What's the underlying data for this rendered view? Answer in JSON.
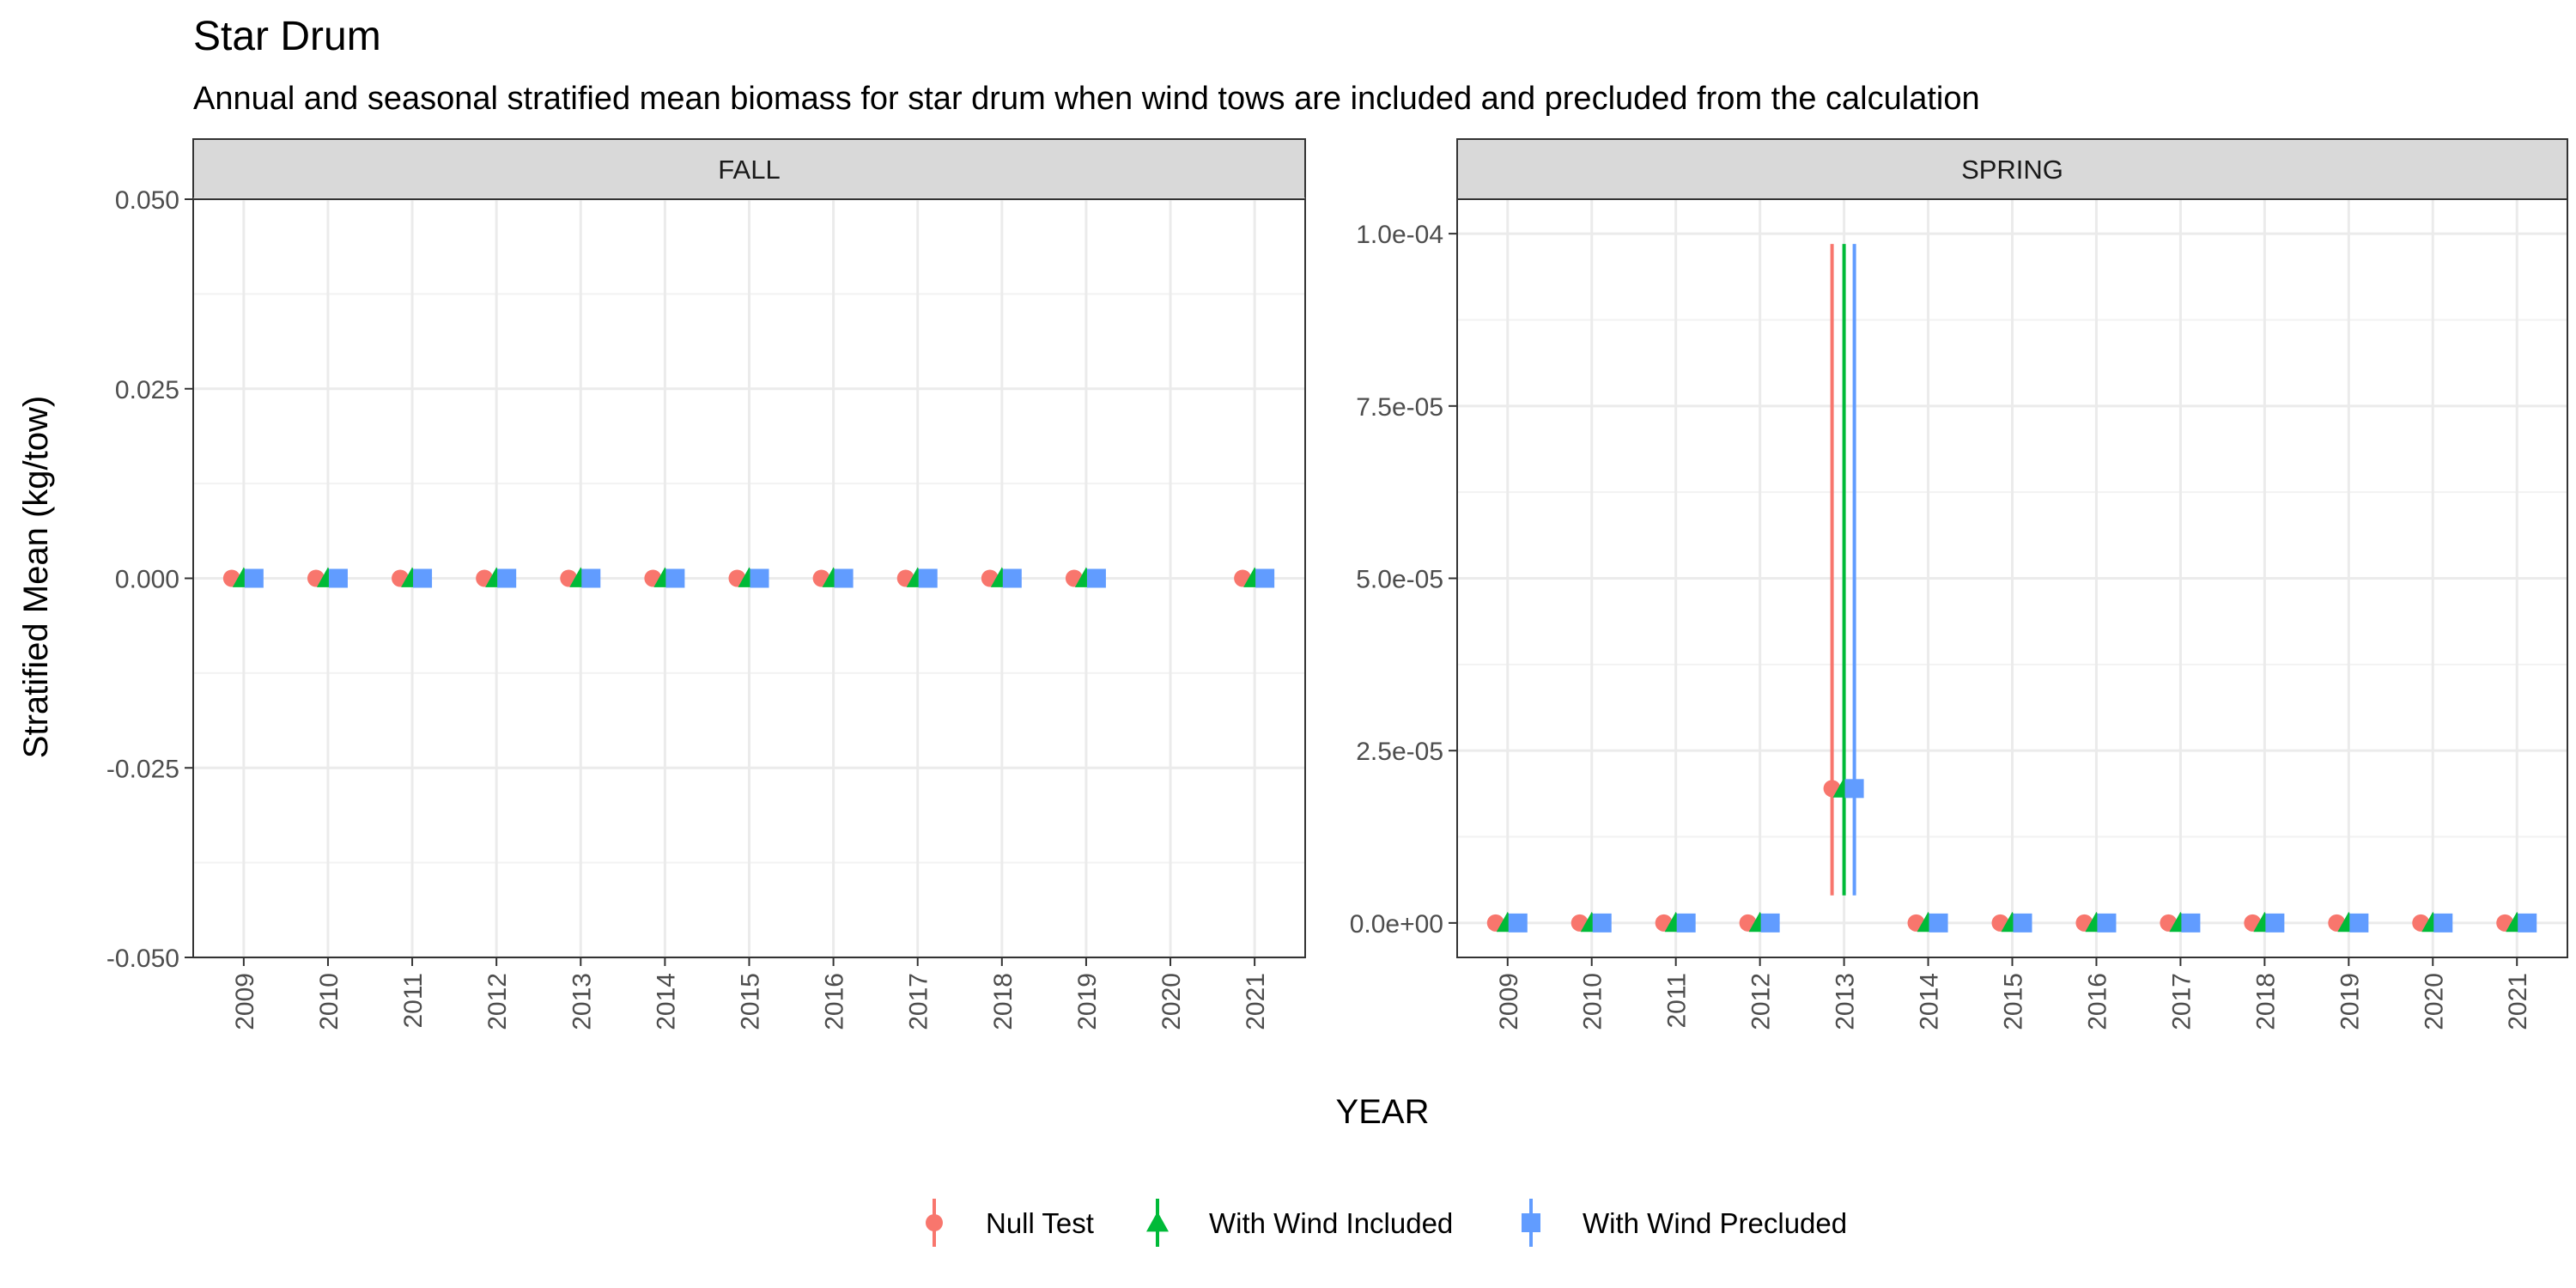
{
  "chart_data": {
    "type": "scatter",
    "title": "Star Drum",
    "subtitle": "Annual and seasonal stratified mean biomass for star drum when wind tows are included and precluded from the calculation",
    "xlabel": "YEAR",
    "ylabel": "Stratified Mean (kg/tow)",
    "legend_position": "bottom",
    "series": [
      {
        "name": "Null Test",
        "color": "#F8766D",
        "marker": "circle"
      },
      {
        "name": "With Wind Included",
        "color": "#00BA38",
        "marker": "triangle"
      },
      {
        "name": "With Wind Precluded",
        "color": "#619CFF",
        "marker": "square"
      }
    ],
    "panels": [
      {
        "label": "FALL",
        "categories": [
          "2009",
          "2010",
          "2011",
          "2012",
          "2013",
          "2014",
          "2015",
          "2016",
          "2017",
          "2018",
          "2019",
          "2020",
          "2021"
        ],
        "ylim": [
          -0.05,
          0.05
        ],
        "yticks": [
          -0.05,
          -0.025,
          0,
          0.025,
          0.05
        ],
        "yticklabels": [
          "-0.050",
          "-0.025",
          "0.000",
          "0.025",
          "0.050"
        ],
        "points": [
          {
            "x": "2009",
            "values": [
              0,
              0,
              0
            ]
          },
          {
            "x": "2010",
            "values": [
              0,
              0,
              0
            ]
          },
          {
            "x": "2011",
            "values": [
              0,
              0,
              0
            ]
          },
          {
            "x": "2012",
            "values": [
              0,
              0,
              0
            ]
          },
          {
            "x": "2013",
            "values": [
              0,
              0,
              0
            ]
          },
          {
            "x": "2014",
            "values": [
              0,
              0,
              0
            ]
          },
          {
            "x": "2015",
            "values": [
              0,
              0,
              0
            ]
          },
          {
            "x": "2016",
            "values": [
              0,
              0,
              0
            ]
          },
          {
            "x": "2017",
            "values": [
              0,
              0,
              0
            ]
          },
          {
            "x": "2018",
            "values": [
              0,
              0,
              0
            ]
          },
          {
            "x": "2019",
            "values": [
              0,
              0,
              0
            ]
          },
          {
            "x": "2021",
            "values": [
              0,
              0,
              0
            ]
          }
        ]
      },
      {
        "label": "SPRING",
        "categories": [
          "2009",
          "2010",
          "2011",
          "2012",
          "2013",
          "2014",
          "2015",
          "2016",
          "2017",
          "2018",
          "2019",
          "2020",
          "2021"
        ],
        "ylim": [
          -5e-06,
          0.000105
        ],
        "yticks": [
          0,
          2.5e-05,
          5e-05,
          7.5e-05,
          0.0001
        ],
        "yticklabels": [
          "0.0e+00",
          "2.5e-05",
          "5.0e-05",
          "7.5e-05",
          "1.0e-04"
        ],
        "points": [
          {
            "x": "2009",
            "values": [
              0,
              0,
              0
            ]
          },
          {
            "x": "2010",
            "values": [
              0,
              0,
              0
            ]
          },
          {
            "x": "2011",
            "values": [
              0,
              0,
              0
            ]
          },
          {
            "x": "2012",
            "values": [
              0,
              0,
              0
            ]
          },
          {
            "x": "2013",
            "values": [
              1.95e-05,
              1.95e-05,
              1.95e-05
            ],
            "err_low": [
              4e-06,
              4e-06,
              4e-06
            ],
            "err_high": [
              9.85e-05,
              9.85e-05,
              9.85e-05
            ]
          },
          {
            "x": "2014",
            "values": [
              0,
              0,
              0
            ]
          },
          {
            "x": "2015",
            "values": [
              0,
              0,
              0
            ]
          },
          {
            "x": "2016",
            "values": [
              0,
              0,
              0
            ]
          },
          {
            "x": "2017",
            "values": [
              0,
              0,
              0
            ]
          },
          {
            "x": "2018",
            "values": [
              0,
              0,
              0
            ]
          },
          {
            "x": "2019",
            "values": [
              0,
              0,
              0
            ]
          },
          {
            "x": "2020",
            "values": [
              0,
              0,
              0
            ]
          },
          {
            "x": "2021",
            "values": [
              0,
              0,
              0
            ]
          }
        ]
      }
    ]
  }
}
